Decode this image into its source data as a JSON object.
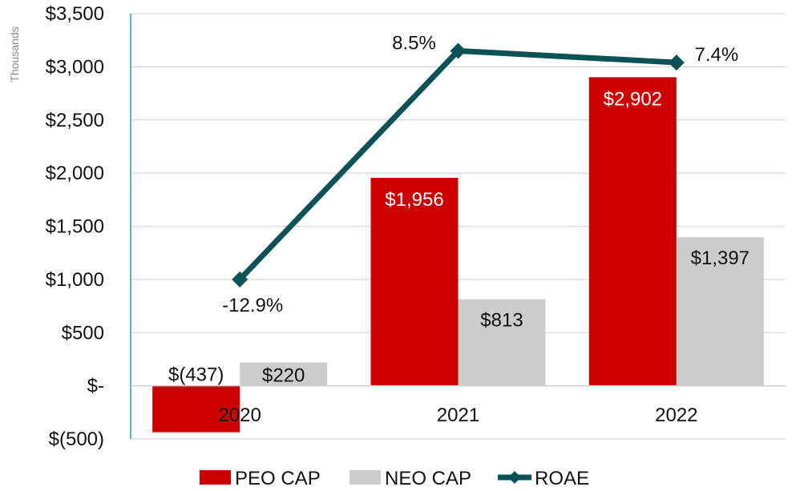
{
  "chart_data": {
    "type": "bar",
    "ylabel": "Thousands",
    "ylim": [
      -500,
      3500
    ],
    "y_ticks": [
      -500,
      0,
      500,
      1000,
      1500,
      2000,
      2500,
      3000,
      3500
    ],
    "y_tick_labels": [
      "$(500)",
      "$-",
      "$500",
      "$1,000",
      "$1,500",
      "$2,000",
      "$2,500",
      "$3,000",
      "$3,500"
    ],
    "categories": [
      "2020",
      "2021",
      "2022"
    ],
    "grid": true,
    "legend_position": "bottom",
    "series": [
      {
        "name": "PEO CAP",
        "kind": "bar",
        "color": "#cc0000",
        "values": [
          -437,
          1956,
          2902
        ],
        "labels": [
          "$(437)",
          "$1,956",
          "$2,902"
        ]
      },
      {
        "name": "NEO CAP",
        "kind": "bar",
        "color": "#cccccc",
        "values": [
          220,
          813,
          1397
        ],
        "labels": [
          "$220",
          "$813",
          "$1,397"
        ]
      },
      {
        "name": "ROAE",
        "kind": "line",
        "color": "#0b5257",
        "plotted_on_left_axis": [
          1000,
          3150,
          3040
        ],
        "labels": [
          "-12.9%",
          "8.5%",
          "7.4%"
        ]
      }
    ]
  }
}
